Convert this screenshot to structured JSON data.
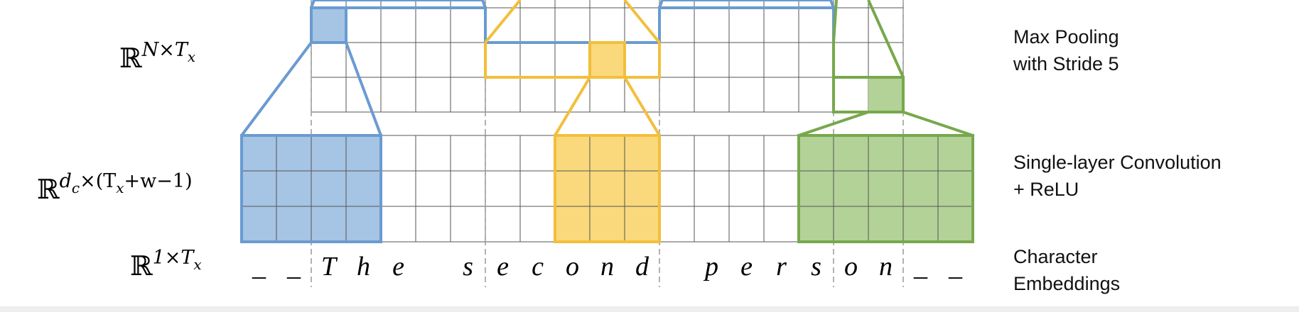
{
  "left_labels": [
    {
      "id": "pool-dim",
      "base": "ℝ",
      "sup": "N×T",
      "sup_sub": "x",
      "sup_tail": ""
    },
    {
      "id": "conv-dim",
      "base": "ℝ",
      "sup": "d",
      "sup_sub": "c",
      "sup_tail": "×(T",
      "sup_sub2": "x",
      "sup_tail2": "+w−1)"
    },
    {
      "id": "emb-dim",
      "base": "ℝ",
      "sup": "1×T",
      "sup_sub": "x",
      "sup_tail": ""
    }
  ],
  "right_labels": [
    {
      "id": "max-pooling",
      "lines": [
        "Max Pooling",
        "with Stride 5"
      ]
    },
    {
      "id": "convolution",
      "lines": [
        "Single-layer Convolution",
        "+ ReLU"
      ]
    },
    {
      "id": "char-embeddings",
      "lines": [
        "Character",
        "Embeddings"
      ]
    }
  ],
  "characters": [
    "_",
    "_",
    "T",
    "h",
    "e",
    "",
    "s",
    "e",
    "c",
    "o",
    "n",
    "d",
    "",
    "p",
    "e",
    "r",
    "s",
    "o",
    "n",
    "_",
    "_"
  ],
  "colors": {
    "blue_fill": "#a6c4e4",
    "blue_stroke": "#6a9bd1",
    "yellow_fill": "#f9d97c",
    "yellow_stroke": "#f2bf3c",
    "green_fill": "#b3d297",
    "green_stroke": "#77a84c",
    "grid": "#555555",
    "dash": "#999999"
  },
  "grid": {
    "pool_columns": 17,
    "pool_rows": 3,
    "conv_columns": 21,
    "conv_rows": 3,
    "stride": 5,
    "filter_width": 4
  }
}
